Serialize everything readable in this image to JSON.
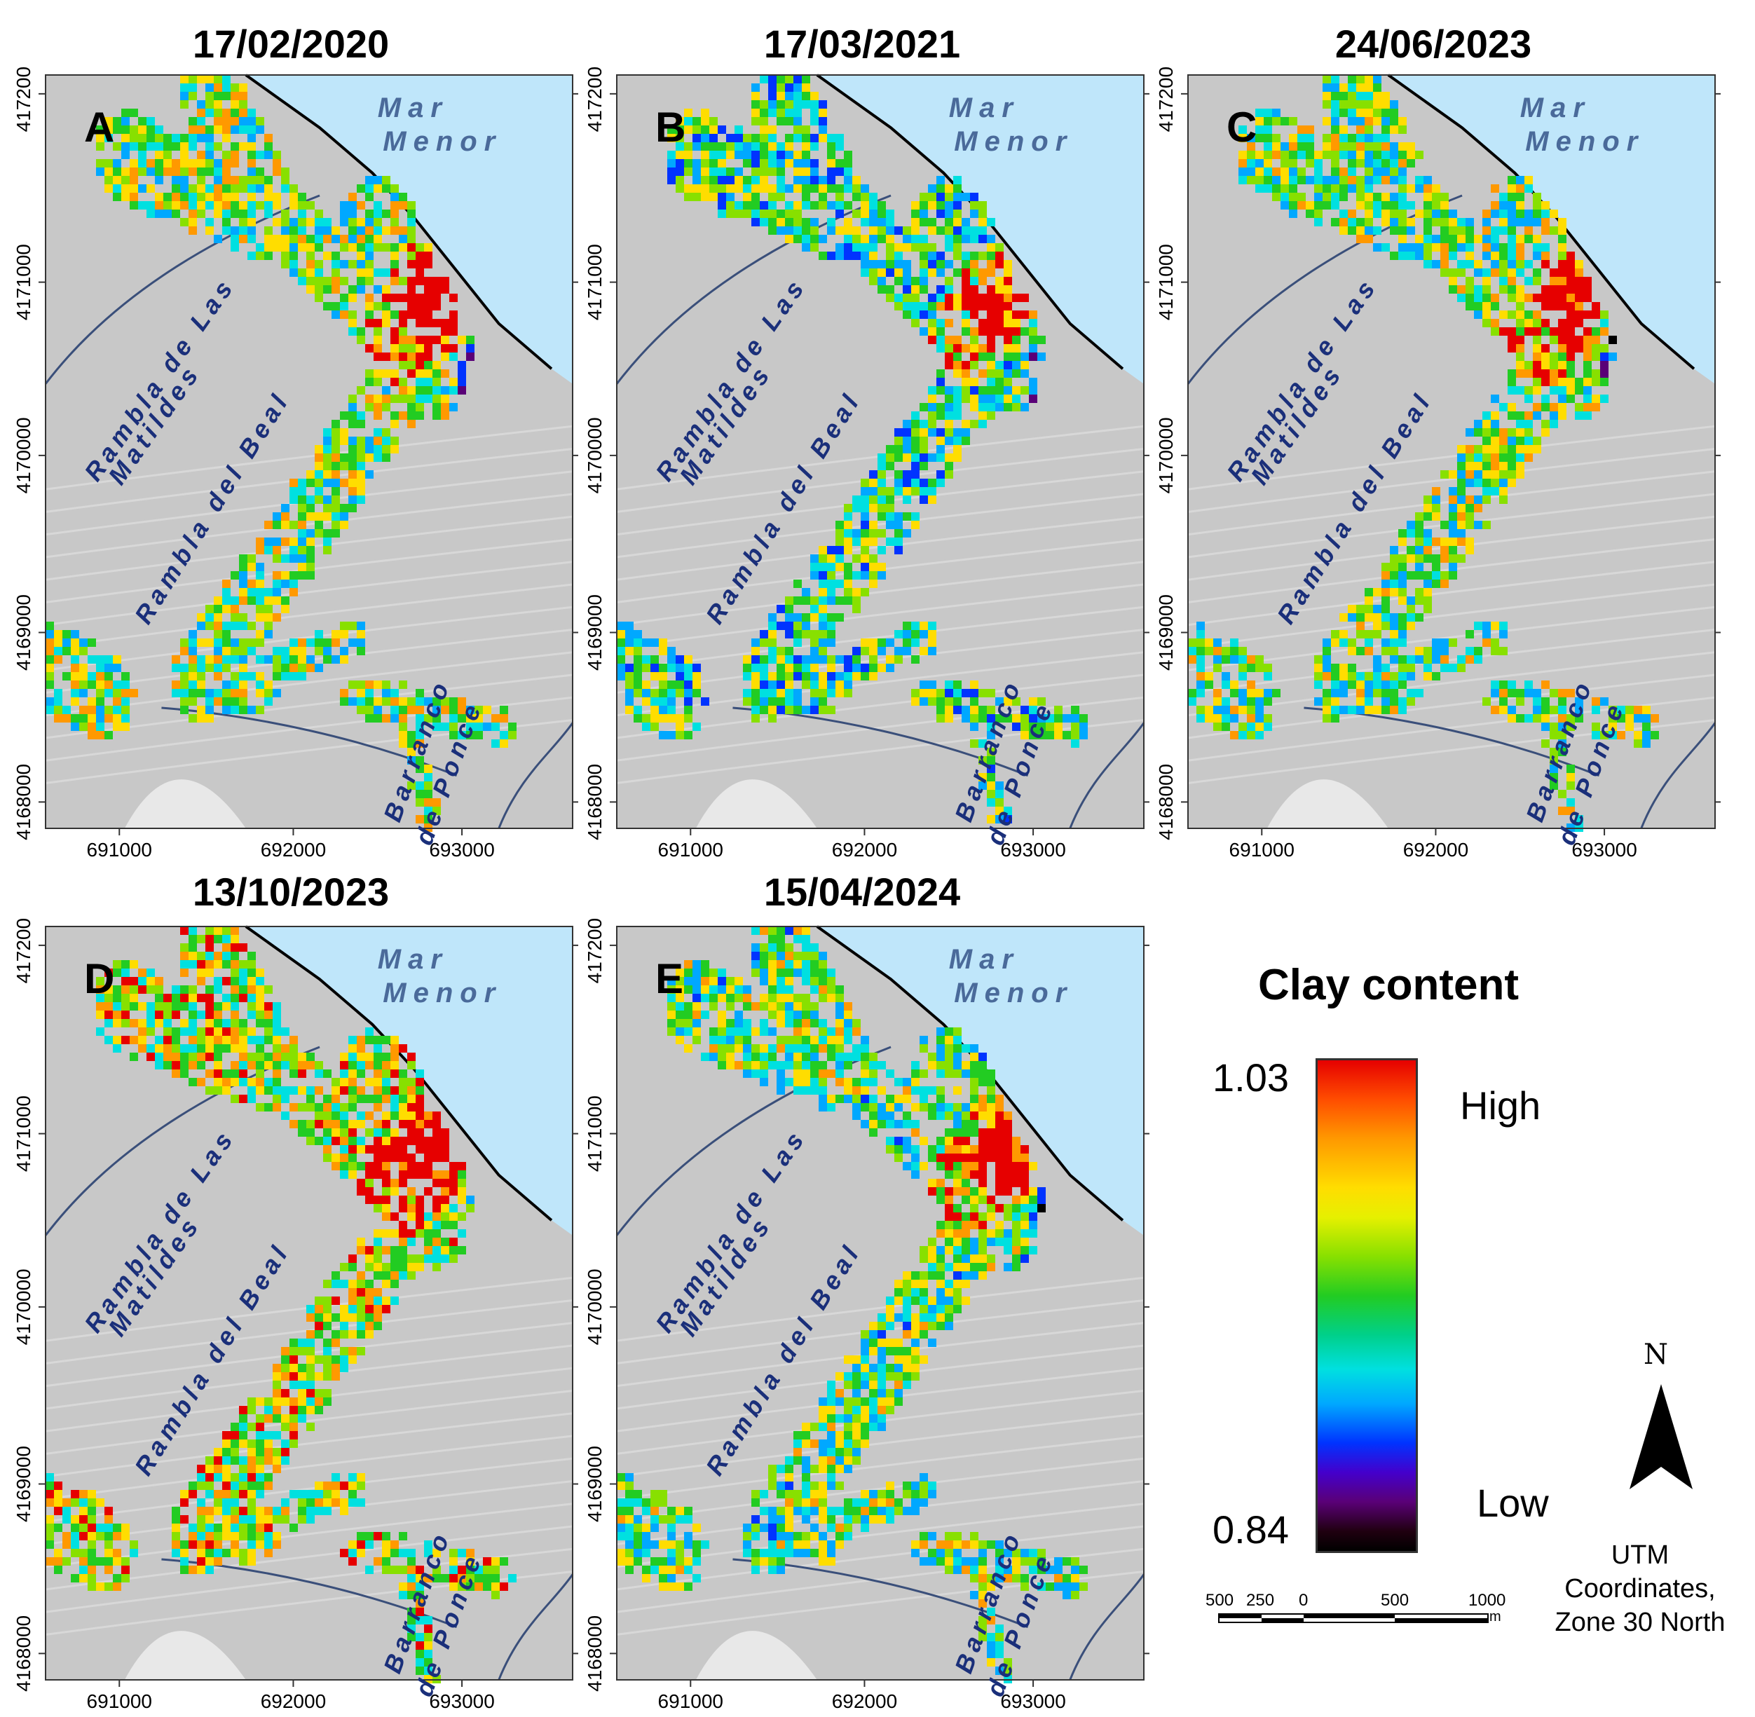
{
  "figure": {
    "panels": [
      {
        "letter": "A",
        "date": "17/02/2020",
        "variant": 0
      },
      {
        "letter": "B",
        "date": "17/03/2021",
        "variant": 1
      },
      {
        "letter": "C",
        "date": "24/06/2023",
        "variant": 2
      },
      {
        "letter": "D",
        "date": "13/10/2023",
        "variant": 3
      },
      {
        "letter": "E",
        "date": "15/04/2024",
        "variant": 4
      }
    ],
    "place_labels": {
      "sea_line1": "Mar",
      "sea_line2": "Menor",
      "rambla_las_matildes_line1": "Rambla de Las",
      "rambla_las_matildes_line2": "Matildes",
      "rambla_del_beal": "Rambla del Beal",
      "barranco_line1": "Barranco",
      "barranco_line2": "de Ponce"
    },
    "x_ticks": [
      "691000",
      "692000",
      "693000"
    ],
    "y_ticks": [
      "4168000",
      "4169000",
      "4170000",
      "4171000",
      "4172000"
    ]
  },
  "legend": {
    "title": "Clay content",
    "max_value": "1.03",
    "min_value": "0.84",
    "high_label": "High",
    "low_label": "Low",
    "colors": [
      "#e60000",
      "#ff9900",
      "#ffdd00",
      "#88e000",
      "#22cc22",
      "#00e0e0",
      "#00a8ff",
      "#0033ff",
      "#5a0077",
      "#000000"
    ]
  },
  "scale_bar": {
    "labels": [
      "500",
      "250",
      "0",
      "500",
      "1000"
    ],
    "unit": "m"
  },
  "north_arrow": {
    "label": "N"
  },
  "coordinate_note": {
    "line1": "UTM",
    "line2": "Coordinates,",
    "line3": "Zone 30 North"
  },
  "colors": {
    "sea": "#bfe6fa",
    "land": "#c8c8c8",
    "river": "#3a4f7a",
    "label_blue": "#1a2f7a",
    "sea_label": "#4a6a9a"
  }
}
